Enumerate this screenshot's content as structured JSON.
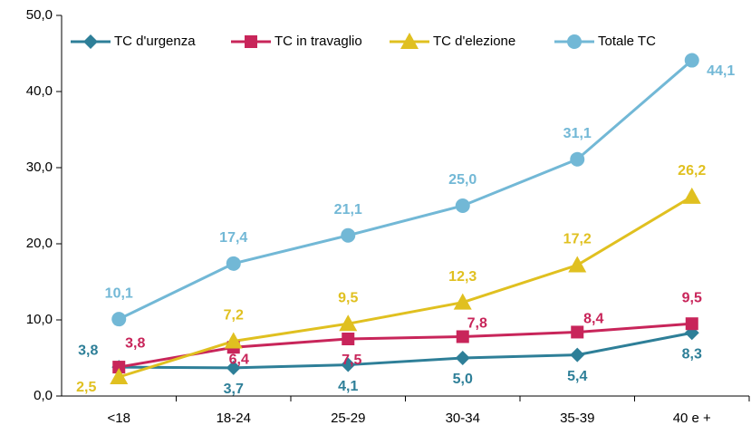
{
  "chart_data": {
    "type": "line",
    "categories": [
      "<18",
      "18-24",
      "25-29",
      "30-34",
      "35-39",
      "40 e +"
    ],
    "series": [
      {
        "name": "TC d'urgenza",
        "color": "#2e7f98",
        "marker": "diamond",
        "values": [
          3.8,
          3.7,
          4.1,
          5.0,
          5.4,
          8.3
        ],
        "value_labels": [
          "3,8",
          "3,7",
          "4,1",
          "5,0",
          "5,4",
          "8,3"
        ]
      },
      {
        "name": "TC in travaglio",
        "color": "#c8255a",
        "marker": "square",
        "values": [
          3.8,
          6.4,
          7.5,
          7.8,
          8.4,
          9.5
        ],
        "value_labels": [
          "3,8",
          "6,4",
          "7,5",
          "7,8",
          "8,4",
          "9,5"
        ]
      },
      {
        "name": "TC d'elezione",
        "color": "#e0c020",
        "marker": "triangle",
        "values": [
          2.5,
          7.2,
          9.5,
          12.3,
          17.2,
          26.2
        ],
        "value_labels": [
          "2,5",
          "7,2",
          "9,5",
          "12,3",
          "17,2",
          "26,2"
        ]
      },
      {
        "name": "Totale TC",
        "color": "#72b8d6",
        "marker": "circle",
        "values": [
          10.1,
          17.4,
          21.1,
          25.0,
          31.1,
          44.1
        ],
        "value_labels": [
          "10,1",
          "17,4",
          "21,1",
          "25,0",
          "31,1",
          "44,1"
        ]
      }
    ],
    "ylim": [
      0,
      50
    ],
    "yticks": [
      {
        "value": 0,
        "label": "0,0"
      },
      {
        "value": 10,
        "label": "10,0"
      },
      {
        "value": 20,
        "label": "20,0"
      },
      {
        "value": 30,
        "label": "30,0"
      },
      {
        "value": 40,
        "label": "40,0"
      },
      {
        "value": 50,
        "label": "50,0"
      }
    ],
    "legend": "top"
  }
}
